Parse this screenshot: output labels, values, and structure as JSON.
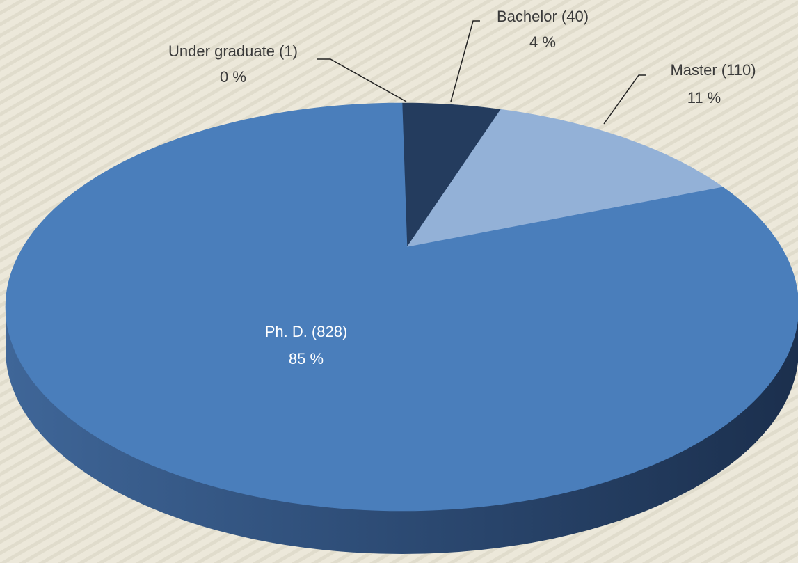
{
  "chart_data": {
    "type": "pie",
    "categories": [
      "Under graduate (1)",
      "Bachelor (40)",
      "Master (110)",
      "Ph. D. (828)"
    ],
    "values": [
      0,
      4,
      11,
      85
    ],
    "value_labels": [
      "0 %",
      "4 %",
      "11 %",
      "85 %"
    ],
    "colors": [
      "#c9d8ec",
      "#243c5e",
      "#93b1d7",
      "#4a7ebb"
    ]
  }
}
